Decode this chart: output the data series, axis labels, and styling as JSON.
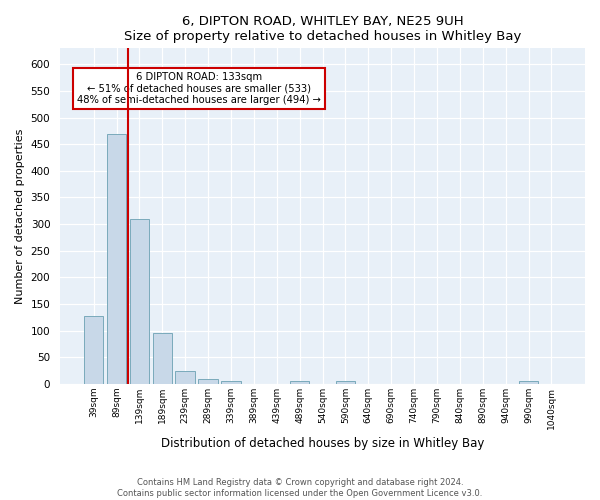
{
  "title": "6, DIPTON ROAD, WHITLEY BAY, NE25 9UH",
  "subtitle": "Size of property relative to detached houses in Whitley Bay",
  "xlabel": "Distribution of detached houses by size in Whitley Bay",
  "ylabel": "Number of detached properties",
  "bar_labels": [
    "39sqm",
    "89sqm",
    "139sqm",
    "189sqm",
    "239sqm",
    "289sqm",
    "339sqm",
    "389sqm",
    "439sqm",
    "489sqm",
    "540sqm",
    "590sqm",
    "640sqm",
    "690sqm",
    "740sqm",
    "790sqm",
    "840sqm",
    "890sqm",
    "940sqm",
    "990sqm",
    "1040sqm"
  ],
  "bar_values": [
    128,
    470,
    310,
    96,
    25,
    10,
    6,
    0,
    0,
    5,
    0,
    6,
    0,
    0,
    0,
    0,
    0,
    0,
    0,
    5,
    0
  ],
  "bar_color": "#c8d8e8",
  "bar_edge_color": "#7aaabb",
  "reference_line_x": 1.5,
  "reference_line_color": "#cc0000",
  "ylim": [
    0,
    630
  ],
  "yticks": [
    0,
    50,
    100,
    150,
    200,
    250,
    300,
    350,
    400,
    450,
    500,
    550,
    600
  ],
  "annotation_text": "6 DIPTON ROAD: 133sqm\n← 51% of detached houses are smaller (533)\n48% of semi-detached houses are larger (494) →",
  "annotation_box_color": "#ffffff",
  "annotation_box_edge_color": "#cc0000",
  "footer_line1": "Contains HM Land Registry data © Crown copyright and database right 2024.",
  "footer_line2": "Contains public sector information licensed under the Open Government Licence v3.0.",
  "bg_color": "#ffffff",
  "plot_bg_color": "#e8f0f8"
}
